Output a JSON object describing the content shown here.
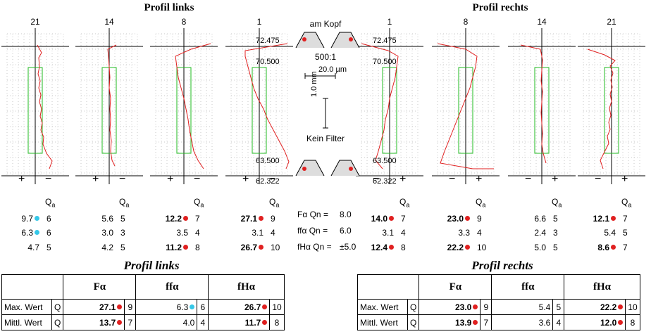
{
  "left_title": "Profil links",
  "right_title": "Profil rechts",
  "qa_label": "Qa",
  "center": {
    "top_label": "am Kopf",
    "scale": "500:1",
    "x_scale": "20.0 µm",
    "y_scale": "1.0 mm",
    "filter": "Kein Filter"
  },
  "charts": [
    {
      "label": "21",
      "side": "left",
      "plus": "+",
      "minus": "−",
      "profile": [
        [
          3,
          64
        ],
        [
          9,
          75
        ],
        [
          5,
          82
        ],
        [
          6,
          95
        ],
        [
          4,
          105
        ],
        [
          7,
          115
        ],
        [
          5,
          125
        ],
        [
          8,
          135
        ],
        [
          6,
          145
        ],
        [
          9,
          155
        ],
        [
          7,
          165
        ],
        [
          10,
          175
        ],
        [
          8,
          185
        ],
        [
          12,
          195
        ],
        [
          11,
          205
        ],
        [
          16,
          218
        ],
        [
          24,
          229
        ],
        [
          20,
          240
        ]
      ],
      "rows": [
        {
          "v": "9.7",
          "q": "6",
          "bold": false,
          "dot": "cyan"
        },
        {
          "v": "6.3",
          "q": "6",
          "bold": false,
          "dot": "cyan"
        },
        {
          "v": "4.7",
          "q": "5",
          "bold": false,
          "dot": ""
        }
      ]
    },
    {
      "label": "14",
      "side": "left",
      "plus": "+",
      "minus": "−",
      "profile": [
        [
          10,
          64
        ],
        [
          -2,
          70
        ],
        [
          -1,
          80
        ],
        [
          0,
          95
        ],
        [
          1,
          110
        ],
        [
          0,
          125
        ],
        [
          2,
          140
        ],
        [
          1,
          155
        ],
        [
          2,
          170
        ],
        [
          1,
          185
        ],
        [
          3,
          200
        ],
        [
          2,
          215
        ],
        [
          4,
          228
        ],
        [
          8,
          236
        ]
      ],
      "rows": [
        {
          "v": "5.6",
          "q": "5",
          "bold": false,
          "dot": ""
        },
        {
          "v": "3.0",
          "q": "3",
          "bold": false,
          "dot": ""
        },
        {
          "v": "4.2",
          "q": "5",
          "bold": false,
          "dot": ""
        }
      ]
    },
    {
      "label": "8",
      "side": "left",
      "plus": "+",
      "minus": "−",
      "profile": [
        [
          38,
          62
        ],
        [
          10,
          70
        ],
        [
          -12,
          80
        ],
        [
          -10,
          95
        ],
        [
          -8,
          110
        ],
        [
          -4,
          125
        ],
        [
          0,
          140
        ],
        [
          3,
          155
        ],
        [
          6,
          170
        ],
        [
          8,
          185
        ],
        [
          11,
          200
        ],
        [
          14,
          215
        ],
        [
          20,
          228
        ],
        [
          28,
          240
        ]
      ],
      "rows": [
        {
          "v": "12.2",
          "q": "7",
          "bold": true,
          "dot": "red"
        },
        {
          "v": "3.5",
          "q": "4",
          "bold": false,
          "dot": ""
        },
        {
          "v": "11.2",
          "q": "8",
          "bold": true,
          "dot": "red"
        }
      ]
    },
    {
      "label": "1",
      "side": "left",
      "plus": "+",
      "minus": "−",
      "profile": [
        [
          40,
          62
        ],
        [
          -20,
          72
        ],
        [
          -20,
          80
        ],
        [
          -16,
          95
        ],
        [
          -12,
          110
        ],
        [
          -8,
          125
        ],
        [
          -2,
          140
        ],
        [
          6,
          155
        ],
        [
          12,
          170
        ],
        [
          20,
          185
        ],
        [
          28,
          200
        ],
        [
          36,
          215
        ],
        [
          42,
          230
        ],
        [
          38,
          240
        ]
      ],
      "rows": [
        {
          "v": "27.1",
          "q": "9",
          "bold": true,
          "dot": "red"
        },
        {
          "v": "3.1",
          "q": "4",
          "bold": false,
          "dot": ""
        },
        {
          "v": "26.7",
          "q": "10",
          "bold": true,
          "dot": "red"
        }
      ]
    },
    {
      "label": "1",
      "side": "right",
      "plus": "+",
      "minus": "−",
      "profile": [
        [
          -40,
          62
        ],
        [
          -2,
          72
        ],
        [
          12,
          80
        ],
        [
          10,
          95
        ],
        [
          8,
          110
        ],
        [
          4,
          125
        ],
        [
          0,
          140
        ],
        [
          -2,
          155
        ],
        [
          -6,
          170
        ],
        [
          -8,
          185
        ],
        [
          -12,
          200
        ],
        [
          -16,
          215
        ],
        [
          -20,
          228
        ],
        [
          -10,
          240
        ]
      ],
      "rows": [
        {
          "v": "14.0",
          "q": "7",
          "bold": true,
          "dot": "red"
        },
        {
          "v": "3.1",
          "q": "4",
          "bold": false,
          "dot": ""
        },
        {
          "v": "12.4",
          "q": "8",
          "bold": true,
          "dot": "red"
        }
      ]
    },
    {
      "label": "8",
      "side": "right",
      "plus": "+",
      "minus": "−",
      "profile": [
        [
          -40,
          62
        ],
        [
          0,
          70
        ],
        [
          16,
          80
        ],
        [
          14,
          95
        ],
        [
          10,
          110
        ],
        [
          6,
          125
        ],
        [
          0,
          140
        ],
        [
          -6,
          155
        ],
        [
          -12,
          170
        ],
        [
          -18,
          185
        ],
        [
          -24,
          200
        ],
        [
          -30,
          215
        ],
        [
          -36,
          232
        ],
        [
          10,
          240
        ],
        [
          40,
          240
        ]
      ],
      "rows": [
        {
          "v": "23.0",
          "q": "9",
          "bold": true,
          "dot": "red"
        },
        {
          "v": "3.3",
          "q": "4",
          "bold": false,
          "dot": ""
        },
        {
          "v": "22.2",
          "q": "10",
          "bold": true,
          "dot": "red"
        }
      ]
    },
    {
      "label": "14",
      "side": "right",
      "plus": "+",
      "minus": "−",
      "profile": [
        [
          -30,
          64
        ],
        [
          -2,
          70
        ],
        [
          1,
          85
        ],
        [
          0,
          100
        ],
        [
          -1,
          115
        ],
        [
          1,
          130
        ],
        [
          0,
          145
        ],
        [
          -1,
          160
        ],
        [
          0,
          175
        ],
        [
          1,
          190
        ],
        [
          0,
          205
        ],
        [
          2,
          218
        ],
        [
          6,
          232
        ]
      ],
      "rows": [
        {
          "v": "6.6",
          "q": "5",
          "bold": false,
          "dot": ""
        },
        {
          "v": "2.4",
          "q": "3",
          "bold": false,
          "dot": ""
        },
        {
          "v": "5.0",
          "q": "5",
          "bold": false,
          "dot": ""
        }
      ]
    },
    {
      "label": "21",
      "side": "right",
      "plus": "+",
      "minus": "−",
      "profile": [
        [
          -34,
          70
        ],
        [
          -10,
          78
        ],
        [
          5,
          86
        ],
        [
          -2,
          94
        ],
        [
          2,
          104
        ],
        [
          -1,
          114
        ],
        [
          1,
          124
        ],
        [
          -2,
          134
        ],
        [
          0,
          144
        ],
        [
          -3,
          154
        ],
        [
          -1,
          164
        ],
        [
          -4,
          174
        ],
        [
          -2,
          184
        ],
        [
          -6,
          194
        ],
        [
          -4,
          204
        ],
        [
          -10,
          216
        ],
        [
          -16,
          228
        ],
        [
          -12,
          240
        ]
      ],
      "rows": [
        {
          "v": "12.1",
          "q": "7",
          "bold": true,
          "dot": "red"
        },
        {
          "v": "5.4",
          "q": "5",
          "bold": false,
          "dot": ""
        },
        {
          "v": "8.6",
          "q": "7",
          "bold": true,
          "dot": "red"
        }
      ]
    }
  ],
  "left_readouts": {
    "top": "72.475",
    "mid": "70.500",
    "low": "63.500",
    "bottom": "62.322"
  },
  "right_readouts": {
    "top": "72.475",
    "mid": "70.500",
    "low": "63.500",
    "bottom": "62.322"
  },
  "tolerances": [
    {
      "label": "Fα Qn =",
      "value": "8.0"
    },
    {
      "label": "ffα Qn =",
      "value": "6.0"
    },
    {
      "label": "fHα Qn =",
      "value": "±5.0"
    }
  ],
  "tables": {
    "left": {
      "title": "Profil links",
      "headers": [
        "Fα",
        "ffα",
        "fHα"
      ],
      "rows": [
        {
          "label": "Max. Wert",
          "q": "Q",
          "cells": [
            {
              "v": "27.1",
              "dot": "red",
              "bold": true,
              "q": "9"
            },
            {
              "v": "6.3",
              "dot": "cyan",
              "bold": false,
              "q": "6"
            },
            {
              "v": "26.7",
              "dot": "red",
              "bold": true,
              "q": "10"
            }
          ]
        },
        {
          "label": "Mittl. Wert",
          "q": "Q",
          "cells": [
            {
              "v": "13.7",
              "dot": "red",
              "bold": true,
              "q": "7"
            },
            {
              "v": "4.0",
              "dot": "",
              "bold": false,
              "q": "4"
            },
            {
              "v": "11.7",
              "dot": "red",
              "bold": true,
              "q": "8"
            }
          ]
        }
      ]
    },
    "right": {
      "title": "Profil rechts",
      "headers": [
        "Fα",
        "ffα",
        "fHα"
      ],
      "rows": [
        {
          "label": "Max. Wert",
          "q": "Q",
          "cells": [
            {
              "v": "23.0",
              "dot": "red",
              "bold": true,
              "q": "9"
            },
            {
              "v": "5.4",
              "dot": "",
              "bold": false,
              "q": "5"
            },
            {
              "v": "22.2",
              "dot": "red",
              "bold": true,
              "q": "10"
            }
          ]
        },
        {
          "label": "Mittl. Wert",
          "q": "Q",
          "cells": [
            {
              "v": "13.9",
              "dot": "red",
              "bold": true,
              "q": "7"
            },
            {
              "v": "3.6",
              "dot": "",
              "bold": false,
              "q": "4"
            },
            {
              "v": "12.0",
              "dot": "red",
              "bold": true,
              "q": "8"
            }
          ]
        }
      ]
    }
  },
  "colors": {
    "profile": "#e02020",
    "tolerance_box": "#22bb22",
    "grid": "#c8c8c8",
    "dot_red": "#e02020",
    "dot_cyan": "#35c8e8"
  }
}
